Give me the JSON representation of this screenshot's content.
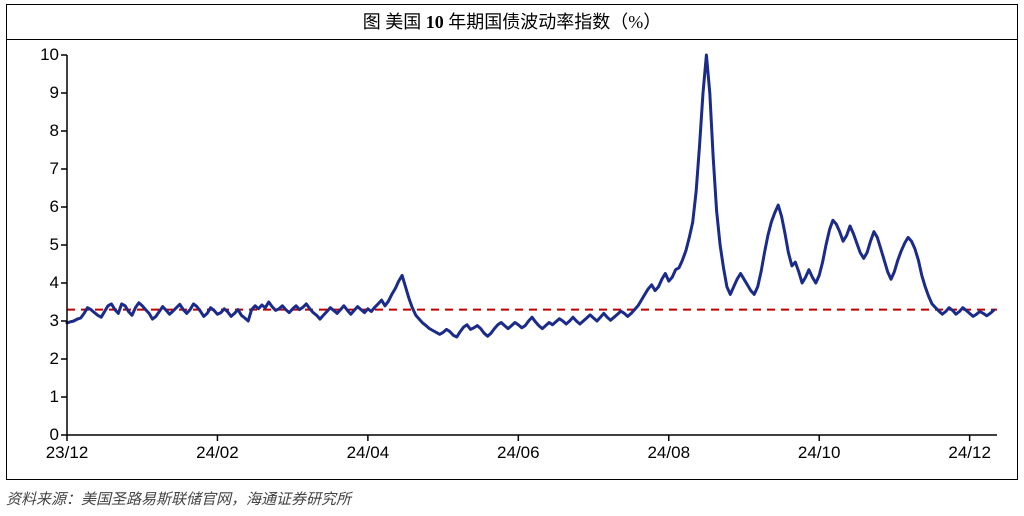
{
  "title": {
    "prefix": "图 美国",
    "bold": "10",
    "suffix": "年期国债波动率指数（%）"
  },
  "source": "资料来源：美国圣路易斯联储官网，海通证券研究所",
  "chart": {
    "type": "line",
    "background_color": "#ffffff",
    "border_color": "#000000",
    "axis_color": "#000000",
    "axis_width": 1.5,
    "tick_length": 6,
    "label_fontsize": 17,
    "label_color": "#000000",
    "title_fontsize": 18,
    "x": {
      "min": 0,
      "max": 272,
      "ticks": [
        {
          "pos": 0,
          "label": "23/12"
        },
        {
          "pos": 44,
          "label": "24/02"
        },
        {
          "pos": 88,
          "label": "24/04"
        },
        {
          "pos": 132,
          "label": "24/06"
        },
        {
          "pos": 176,
          "label": "24/08"
        },
        {
          "pos": 220,
          "label": "24/10"
        },
        {
          "pos": 264,
          "label": "24/12"
        }
      ]
    },
    "y": {
      "min": 0,
      "max": 10,
      "ticks": [
        0,
        1,
        2,
        3,
        4,
        5,
        6,
        7,
        8,
        9,
        10
      ]
    },
    "reference_line": {
      "value": 3.3,
      "color": "#c00000",
      "width": 2,
      "dash": "8 6"
    },
    "series": {
      "color": "#1a2b8a",
      "width": 3,
      "values": [
        2.95,
        2.98,
        3.0,
        3.05,
        3.08,
        3.2,
        3.35,
        3.3,
        3.22,
        3.15,
        3.1,
        3.25,
        3.4,
        3.45,
        3.3,
        3.2,
        3.45,
        3.4,
        3.25,
        3.15,
        3.35,
        3.48,
        3.4,
        3.3,
        3.2,
        3.05,
        3.12,
        3.25,
        3.38,
        3.28,
        3.18,
        3.26,
        3.35,
        3.44,
        3.3,
        3.2,
        3.3,
        3.45,
        3.38,
        3.26,
        3.12,
        3.2,
        3.35,
        3.28,
        3.18,
        3.22,
        3.32,
        3.24,
        3.12,
        3.2,
        3.3,
        3.15,
        3.08,
        3.0,
        3.3,
        3.4,
        3.32,
        3.42,
        3.35,
        3.5,
        3.38,
        3.28,
        3.32,
        3.4,
        3.3,
        3.22,
        3.32,
        3.4,
        3.3,
        3.36,
        3.45,
        3.32,
        3.22,
        3.15,
        3.05,
        3.15,
        3.25,
        3.35,
        3.28,
        3.2,
        3.3,
        3.4,
        3.28,
        3.18,
        3.28,
        3.38,
        3.3,
        3.22,
        3.32,
        3.25,
        3.36,
        3.45,
        3.55,
        3.4,
        3.52,
        3.7,
        3.85,
        4.05,
        4.2,
        3.9,
        3.6,
        3.35,
        3.15,
        3.05,
        2.95,
        2.88,
        2.8,
        2.75,
        2.7,
        2.65,
        2.7,
        2.78,
        2.72,
        2.62,
        2.58,
        2.72,
        2.84,
        2.9,
        2.78,
        2.82,
        2.88,
        2.8,
        2.68,
        2.6,
        2.68,
        2.8,
        2.9,
        2.96,
        2.88,
        2.8,
        2.88,
        2.96,
        2.9,
        2.82,
        2.88,
        3.0,
        3.1,
        2.98,
        2.88,
        2.8,
        2.88,
        2.96,
        2.9,
        2.98,
        3.06,
        3.0,
        2.92,
        3.0,
        3.1,
        3.0,
        2.92,
        3.0,
        3.08,
        3.16,
        3.08,
        3.0,
        3.1,
        3.2,
        3.1,
        3.02,
        3.1,
        3.18,
        3.26,
        3.2,
        3.12,
        3.2,
        3.3,
        3.4,
        3.55,
        3.7,
        3.85,
        3.95,
        3.8,
        3.9,
        4.1,
        4.25,
        4.05,
        4.15,
        4.35,
        4.4,
        4.6,
        4.85,
        5.2,
        5.6,
        6.4,
        7.6,
        9.0,
        10.0,
        9.0,
        7.3,
        5.9,
        5.0,
        4.4,
        3.9,
        3.7,
        3.9,
        4.1,
        4.25,
        4.1,
        3.95,
        3.8,
        3.7,
        3.9,
        4.3,
        4.8,
        5.25,
        5.6,
        5.85,
        6.05,
        5.75,
        5.3,
        4.8,
        4.45,
        4.55,
        4.3,
        4.0,
        4.15,
        4.35,
        4.15,
        4.0,
        4.2,
        4.55,
        5.0,
        5.4,
        5.65,
        5.55,
        5.35,
        5.1,
        5.25,
        5.5,
        5.3,
        5.05,
        4.8,
        4.65,
        4.8,
        5.1,
        5.35,
        5.2,
        4.9,
        4.6,
        4.3,
        4.1,
        4.3,
        4.6,
        4.85,
        5.05,
        5.2,
        5.1,
        4.9,
        4.6,
        4.2,
        3.9,
        3.65,
        3.45,
        3.35,
        3.26,
        3.18,
        3.25,
        3.35,
        3.28,
        3.18,
        3.25,
        3.35,
        3.28,
        3.2,
        3.12,
        3.18,
        3.25,
        3.2,
        3.14,
        3.2,
        3.28
      ]
    }
  }
}
